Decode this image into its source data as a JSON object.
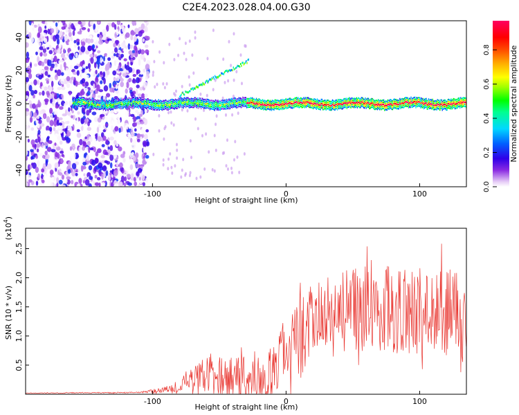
{
  "title": "C2E4.2023.028.04.00.G30",
  "chart_data": [
    {
      "type": "heatmap",
      "name": "spectrogram",
      "xlabel": "Height of straight line (km)",
      "ylabel": "Frequency (Hz)",
      "xlim": [
        -195,
        135
      ],
      "ylim": [
        -50,
        50
      ],
      "xticks": [
        -100,
        0,
        100
      ],
      "xtick_labels": [
        "-100",
        "0",
        "100"
      ],
      "yticks": [
        -40,
        -20,
        0,
        20,
        40
      ],
      "ytick_labels": [
        "-40",
        "-20",
        "0",
        "20",
        "40"
      ],
      "colorbar": {
        "label": "Normalized spectral amplitude",
        "range": [
          0,
          0.97
        ],
        "ticks": [
          0.0,
          0.2,
          0.4,
          0.6,
          0.8
        ],
        "tick_labels": [
          "0.0",
          "0.2",
          "0.4",
          "0.6",
          "0.8"
        ],
        "colormap": "rainbow (white-violet-blue-cyan-green-yellow-red-magenta)"
      },
      "features": [
        {
          "desc": "scattered noise",
          "x_range": [
            -195,
            -103
          ],
          "freq_range": [
            -50,
            50
          ],
          "amplitude": 0.2
        },
        {
          "desc": "main band",
          "x_range": [
            -160,
            135
          ],
          "freq_center": 0,
          "freq_halfwidth": 2.5,
          "amplitude": 0.75
        },
        {
          "desc": "upper branch",
          "x_range": [
            -80,
            -28
          ],
          "freq_range": [
            5,
            26
          ],
          "amplitude": 0.5
        }
      ]
    },
    {
      "type": "line",
      "name": "snr",
      "xlabel": "Height of straight line (km)",
      "ylabel": "SNR (10 * v/v)",
      "y_scale_label": "(x10",
      "y_scale_exp": "4",
      "y_scale_suffix": ")",
      "xlim": [
        -195,
        135
      ],
      "ylim": [
        0,
        2.85
      ],
      "xticks": [
        -100,
        0,
        100
      ],
      "xtick_labels": [
        "-100",
        "0",
        "100"
      ],
      "yticks": [
        0.5,
        1.0,
        1.5,
        2.0,
        2.5
      ],
      "ytick_labels": [
        "0.5",
        "1.0",
        "1.5",
        "2.0",
        "2.5"
      ],
      "series": [
        {
          "name": "SNR",
          "color": "#e8302a",
          "envelope_x": [
            -195,
            -110,
            -90,
            -75,
            -60,
            -45,
            -30,
            -15,
            0,
            15,
            30,
            50,
            70,
            90,
            110,
            135
          ],
          "envelope_mean": [
            0.02,
            0.03,
            0.08,
            0.2,
            0.35,
            0.3,
            0.25,
            0.2,
            0.8,
            1.1,
            1.3,
            1.45,
            1.45,
            1.45,
            1.4,
            1.45
          ],
          "envelope_amplitude": [
            0.005,
            0.01,
            0.05,
            0.15,
            0.3,
            0.35,
            0.4,
            0.45,
            0.55,
            0.7,
            0.75,
            0.75,
            0.75,
            0.75,
            0.75,
            0.75
          ]
        }
      ]
    }
  ]
}
